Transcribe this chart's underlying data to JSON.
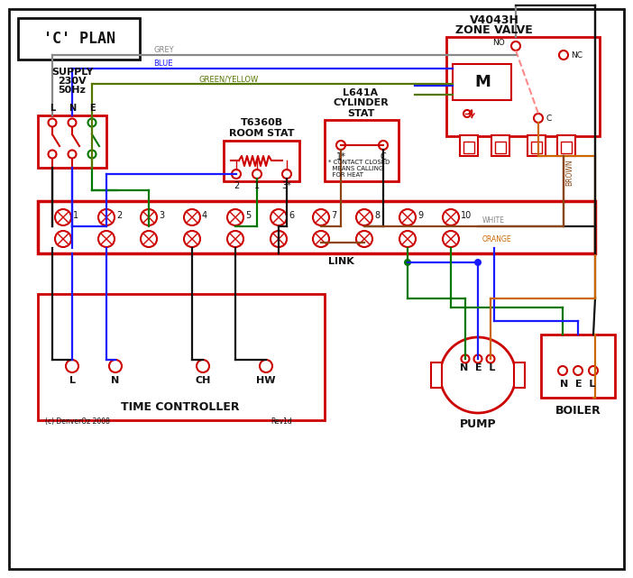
{
  "title": "'C' PLAN",
  "bg_color": "#ffffff",
  "red": "#cc0000",
  "blue": "#1a1aff",
  "green": "#007700",
  "black": "#111111",
  "grey": "#888888",
  "brown": "#8B4513",
  "orange": "#cc6600",
  "green_yellow": "#557700",
  "pink_dashed": "#ff8888",
  "zone_valve_title": "V4043H\nZONE VALVE",
  "room_stat_title": "T6360B\nROOM STAT",
  "cyl_stat_title": "L641A\nCYLINDER\nSTAT",
  "supply_text": "SUPPLY\n230V\n50Hz",
  "time_controller_text": "TIME CONTROLLER",
  "pump_text": "PUMP",
  "boiler_text": "BOILER",
  "link_text": "LINK",
  "terminal_numbers": [
    "1",
    "2",
    "3",
    "4",
    "5",
    "6",
    "7",
    "8",
    "9",
    "10"
  ],
  "copyright": "(c) DenverOz 2008",
  "rev": "Rev1d"
}
